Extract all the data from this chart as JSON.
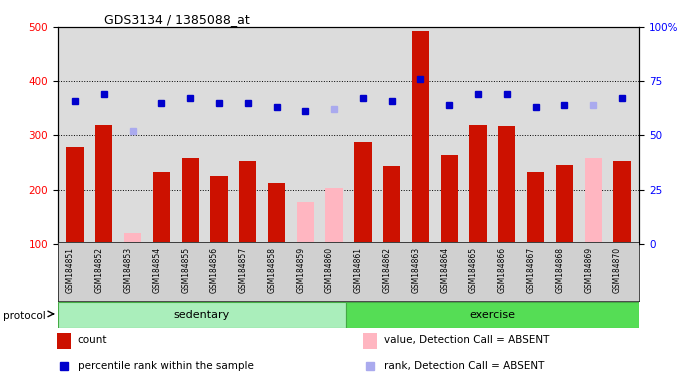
{
  "title": "GDS3134 / 1385088_at",
  "samples": [
    "GSM184851",
    "GSM184852",
    "GSM184853",
    "GSM184854",
    "GSM184855",
    "GSM184856",
    "GSM184857",
    "GSM184858",
    "GSM184859",
    "GSM184860",
    "GSM184861",
    "GSM184862",
    "GSM184863",
    "GSM184864",
    "GSM184865",
    "GSM184866",
    "GSM184867",
    "GSM184868",
    "GSM184869",
    "GSM184870"
  ],
  "values": [
    278,
    320,
    120,
    233,
    258,
    225,
    252,
    212,
    178,
    203,
    287,
    244,
    493,
    263,
    320,
    318,
    232,
    246,
    258,
    252
  ],
  "absent_mask": [
    false,
    false,
    true,
    false,
    false,
    false,
    false,
    false,
    true,
    true,
    false,
    false,
    false,
    false,
    false,
    false,
    false,
    false,
    true,
    false
  ],
  "percentile_ranks": [
    66,
    69,
    52,
    65,
    67,
    65,
    65,
    63,
    61,
    62,
    67,
    66,
    76,
    64,
    69,
    69,
    63,
    64,
    64,
    67
  ],
  "absent_rank_mask": [
    false,
    false,
    true,
    false,
    false,
    false,
    false,
    false,
    false,
    true,
    false,
    false,
    false,
    false,
    false,
    false,
    false,
    false,
    true,
    false
  ],
  "bar_color_present": "#CC1100",
  "bar_color_absent": "#FFB6C1",
  "rank_color_present": "#0000CC",
  "rank_color_absent": "#AAAAEE",
  "ylim_left": [
    100,
    500
  ],
  "ylim_right": [
    0,
    100
  ],
  "yticks_left": [
    100,
    200,
    300,
    400,
    500
  ],
  "yticks_right": [
    0,
    25,
    50,
    75,
    100
  ],
  "yticklabels_right": [
    "0",
    "25",
    "50",
    "75",
    "100%"
  ],
  "grid_color": "black",
  "background_color": "#DCDCDC",
  "sed_color": "#AAEEBB",
  "exe_color": "#55DD55",
  "legend_items": [
    {
      "label": "count",
      "color": "#CC1100",
      "type": "rect"
    },
    {
      "label": "percentile rank within the sample",
      "color": "#0000CC",
      "type": "square"
    },
    {
      "label": "value, Detection Call = ABSENT",
      "color": "#FFB6C1",
      "type": "rect"
    },
    {
      "label": "rank, Detection Call = ABSENT",
      "color": "#AAAAEE",
      "type": "square"
    }
  ]
}
